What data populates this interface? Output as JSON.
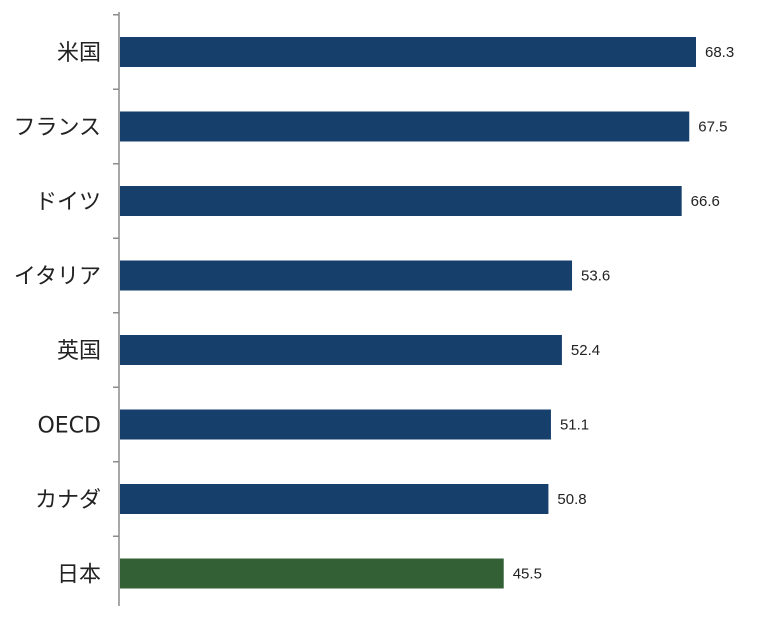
{
  "chart_data": {
    "type": "bar",
    "orientation": "horizontal",
    "categories": [
      "米国",
      "フランス",
      "ドイツ",
      "イタリア",
      "英国",
      "OECD",
      "カナダ",
      "日本"
    ],
    "values": [
      68.3,
      67.5,
      66.6,
      53.6,
      52.4,
      51.1,
      50.8,
      45.5
    ],
    "bar_colors": [
      "#163f6b",
      "#163f6b",
      "#163f6b",
      "#163f6b",
      "#163f6b",
      "#163f6b",
      "#163f6b",
      "#336035"
    ],
    "title": "",
    "xlabel": "",
    "ylabel": "",
    "xlim": [
      0,
      70
    ],
    "grid": false,
    "legend": "none",
    "data_labels": true
  }
}
